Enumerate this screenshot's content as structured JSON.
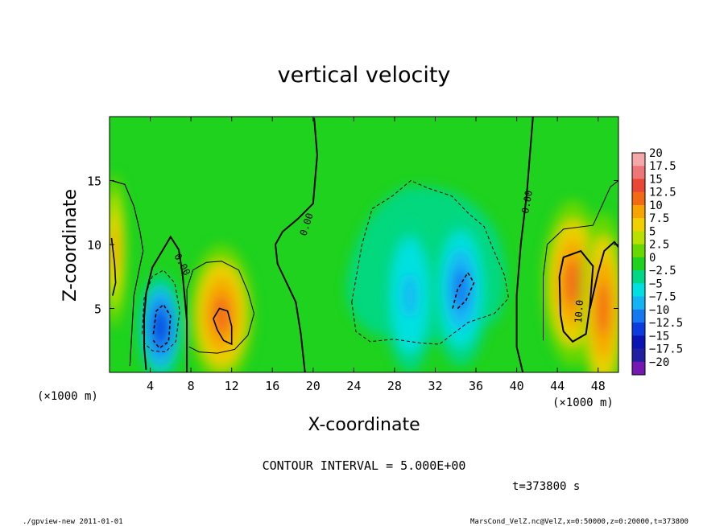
{
  "chart_data": {
    "type": "heatmap",
    "title": "vertical velocity",
    "xlabel": "X-coordinate",
    "ylabel": "Z-coordinate",
    "x_unit": "(×1000 m)",
    "y_unit": "(×1000 m)",
    "xlim": [
      0,
      50
    ],
    "ylim": [
      0,
      20
    ],
    "x_ticks": [
      4,
      8,
      12,
      16,
      20,
      24,
      28,
      32,
      36,
      40,
      44,
      48
    ],
    "y_ticks": [
      5,
      10,
      15
    ],
    "colorbar": {
      "levels": [
        20,
        17.5,
        15,
        12.5,
        10,
        7.5,
        5,
        2.5,
        0,
        -2.5,
        -5,
        -7.5,
        -10,
        -12.5,
        -15,
        -17.5,
        -20
      ],
      "level_labels": [
        "20",
        "17.5",
        "15",
        "12.5",
        "10",
        "7.5",
        "5",
        "2.5",
        "0",
        "−2.5",
        "−5",
        "−7.5",
        "−10",
        "−12.5",
        "−15",
        "−17.5",
        "−20"
      ],
      "colors": [
        "#f4a8a8",
        "#ee7676",
        "#ea4636",
        "#f26a14",
        "#f7a400",
        "#f0d000",
        "#b8e000",
        "#68d800",
        "#1ed21e",
        "#00d888",
        "#00e0e0",
        "#14b4f4",
        "#1478f0",
        "#0c3ce0",
        "#0a14b4",
        "#2020a0",
        "#7418b4"
      ]
    },
    "contour_interval": "CONTOUR INTERVAL = 5.000E+00",
    "contour_labels": [
      "0.00",
      "0.00",
      "0.00",
      "10.0"
    ],
    "features": [
      {
        "kind": "downdraft",
        "x": 5,
        "z": 3.5,
        "peak": -12.5
      },
      {
        "kind": "updraft",
        "x": 11,
        "z": 4.5,
        "peak": 12
      },
      {
        "kind": "updraft",
        "x": 0.5,
        "z": 9.5,
        "peak": 9
      },
      {
        "kind": "downdraft",
        "x": 29.5,
        "z": 6,
        "peak": -7.5
      },
      {
        "kind": "downdraft",
        "x": 34.5,
        "z": 6.5,
        "peak": -9
      },
      {
        "kind": "updraft",
        "x": 45.5,
        "z": 7,
        "peak": 13
      },
      {
        "kind": "updraft",
        "x": 48.5,
        "z": 5,
        "peak": 13
      }
    ],
    "time_label": "t=373800 s"
  },
  "footer": {
    "left": "./gpview-new   2011-01-01",
    "right": "MarsCond_VelZ.nc@VelZ,x=0:50000,z=0:20000,t=373800"
  }
}
